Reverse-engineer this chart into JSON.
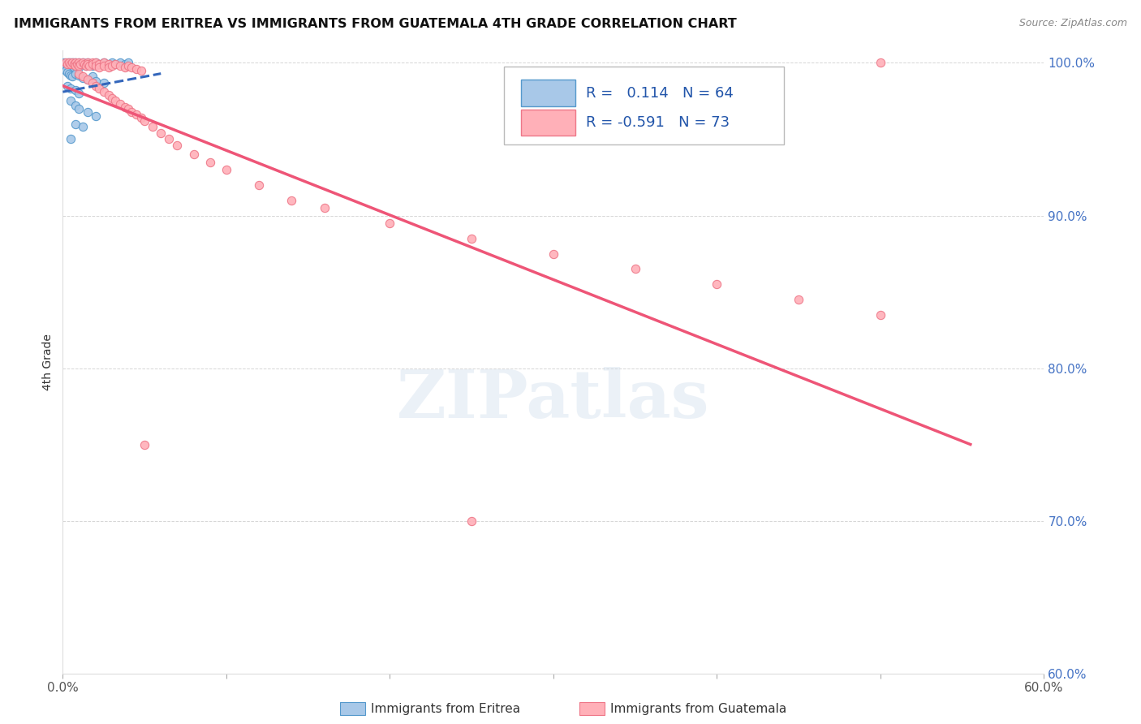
{
  "title": "IMMIGRANTS FROM ERITREA VS IMMIGRANTS FROM GUATEMALA 4TH GRADE CORRELATION CHART",
  "source": "Source: ZipAtlas.com",
  "ylabel": "4th Grade",
  "xmin": 0.0,
  "xmax": 0.6,
  "ymin": 0.6,
  "ymax": 1.008,
  "yticks": [
    0.6,
    0.7,
    0.8,
    0.9,
    1.0
  ],
  "ytick_labels": [
    "60.0%",
    "70.0%",
    "80.0%",
    "90.0%",
    "100.0%"
  ],
  "xticks": [
    0.0,
    0.1,
    0.2,
    0.3,
    0.4,
    0.5,
    0.6
  ],
  "xtick_labels": [
    "0.0%",
    "",
    "",
    "",
    "",
    "",
    "60.0%"
  ],
  "legend_eritrea_R": "0.114",
  "legend_eritrea_N": "64",
  "legend_guatemala_R": "-0.591",
  "legend_guatemala_N": "73",
  "eritrea_color": "#a8c8e8",
  "eritrea_edge_color": "#5599cc",
  "guatemala_color": "#ffb0b8",
  "guatemala_edge_color": "#ee7788",
  "eritrea_line_color": "#3366bb",
  "guatemala_line_color": "#ee5577",
  "watermark": "ZIPatlas",
  "eritrea_points": [
    [
      0.001,
      1.0
    ],
    [
      0.002,
      0.999
    ],
    [
      0.002,
      0.998
    ],
    [
      0.003,
      1.0
    ],
    [
      0.003,
      0.999
    ],
    [
      0.003,
      0.998
    ],
    [
      0.004,
      1.0
    ],
    [
      0.004,
      0.999
    ],
    [
      0.004,
      0.998
    ],
    [
      0.005,
      1.0
    ],
    [
      0.005,
      0.999
    ],
    [
      0.005,
      0.997
    ],
    [
      0.006,
      1.0
    ],
    [
      0.006,
      0.999
    ],
    [
      0.006,
      0.998
    ],
    [
      0.007,
      1.0
    ],
    [
      0.007,
      0.999
    ],
    [
      0.007,
      0.997
    ],
    [
      0.008,
      1.0
    ],
    [
      0.008,
      0.998
    ],
    [
      0.009,
      0.999
    ],
    [
      0.009,
      0.998
    ],
    [
      0.01,
      1.0
    ],
    [
      0.01,
      0.997
    ],
    [
      0.011,
      0.999
    ],
    [
      0.012,
      1.0
    ],
    [
      0.013,
      0.999
    ],
    [
      0.014,
      0.998
    ],
    [
      0.015,
      1.0
    ],
    [
      0.016,
      0.999
    ],
    [
      0.018,
      0.998
    ],
    [
      0.02,
      1.0
    ],
    [
      0.022,
      0.999
    ],
    [
      0.025,
      1.0
    ],
    [
      0.028,
      0.999
    ],
    [
      0.03,
      1.0
    ],
    [
      0.032,
      0.999
    ],
    [
      0.035,
      1.0
    ],
    [
      0.038,
      0.999
    ],
    [
      0.04,
      1.0
    ],
    [
      0.002,
      0.995
    ],
    [
      0.003,
      0.994
    ],
    [
      0.004,
      0.993
    ],
    [
      0.005,
      0.992
    ],
    [
      0.006,
      0.991
    ],
    [
      0.008,
      0.993
    ],
    [
      0.01,
      0.992
    ],
    [
      0.012,
      0.99
    ],
    [
      0.015,
      0.989
    ],
    [
      0.018,
      0.991
    ],
    [
      0.02,
      0.988
    ],
    [
      0.025,
      0.987
    ],
    [
      0.003,
      0.985
    ],
    [
      0.005,
      0.983
    ],
    [
      0.008,
      0.982
    ],
    [
      0.01,
      0.98
    ],
    [
      0.005,
      0.975
    ],
    [
      0.008,
      0.972
    ],
    [
      0.01,
      0.97
    ],
    [
      0.015,
      0.968
    ],
    [
      0.02,
      0.965
    ],
    [
      0.008,
      0.96
    ],
    [
      0.012,
      0.958
    ],
    [
      0.005,
      0.95
    ]
  ],
  "guatemala_points": [
    [
      0.002,
      1.0
    ],
    [
      0.003,
      0.999
    ],
    [
      0.004,
      1.0
    ],
    [
      0.005,
      0.999
    ],
    [
      0.006,
      1.0
    ],
    [
      0.007,
      0.999
    ],
    [
      0.008,
      1.0
    ],
    [
      0.008,
      0.998
    ],
    [
      0.009,
      0.999
    ],
    [
      0.01,
      1.0
    ],
    [
      0.01,
      0.998
    ],
    [
      0.011,
      0.999
    ],
    [
      0.012,
      1.0
    ],
    [
      0.013,
      0.999
    ],
    [
      0.014,
      0.998
    ],
    [
      0.015,
      1.0
    ],
    [
      0.015,
      0.999
    ],
    [
      0.016,
      0.998
    ],
    [
      0.018,
      1.0
    ],
    [
      0.018,
      0.999
    ],
    [
      0.02,
      1.0
    ],
    [
      0.02,
      0.998
    ],
    [
      0.022,
      0.999
    ],
    [
      0.022,
      0.997
    ],
    [
      0.025,
      1.0
    ],
    [
      0.025,
      0.998
    ],
    [
      0.028,
      0.999
    ],
    [
      0.028,
      0.997
    ],
    [
      0.03,
      0.998
    ],
    [
      0.032,
      0.999
    ],
    [
      0.035,
      0.998
    ],
    [
      0.038,
      0.997
    ],
    [
      0.04,
      0.998
    ],
    [
      0.042,
      0.997
    ],
    [
      0.045,
      0.996
    ],
    [
      0.048,
      0.995
    ],
    [
      0.01,
      0.993
    ],
    [
      0.012,
      0.991
    ],
    [
      0.015,
      0.989
    ],
    [
      0.018,
      0.987
    ],
    [
      0.02,
      0.985
    ],
    [
      0.022,
      0.983
    ],
    [
      0.025,
      0.981
    ],
    [
      0.028,
      0.979
    ],
    [
      0.03,
      0.977
    ],
    [
      0.032,
      0.975
    ],
    [
      0.035,
      0.973
    ],
    [
      0.038,
      0.971
    ],
    [
      0.04,
      0.97
    ],
    [
      0.042,
      0.968
    ],
    [
      0.045,
      0.966
    ],
    [
      0.048,
      0.964
    ],
    [
      0.05,
      0.962
    ],
    [
      0.055,
      0.958
    ],
    [
      0.06,
      0.954
    ],
    [
      0.065,
      0.95
    ],
    [
      0.07,
      0.946
    ],
    [
      0.08,
      0.94
    ],
    [
      0.09,
      0.935
    ],
    [
      0.1,
      0.93
    ],
    [
      0.12,
      0.92
    ],
    [
      0.14,
      0.91
    ],
    [
      0.16,
      0.905
    ],
    [
      0.2,
      0.895
    ],
    [
      0.25,
      0.885
    ],
    [
      0.3,
      0.875
    ],
    [
      0.35,
      0.865
    ],
    [
      0.4,
      0.855
    ],
    [
      0.05,
      0.75
    ],
    [
      0.45,
      0.845
    ],
    [
      0.5,
      0.835
    ],
    [
      0.25,
      0.7
    ],
    [
      0.5,
      1.0
    ]
  ],
  "eritrea_trend_x": [
    0.0,
    0.06
  ],
  "eritrea_trend_y": [
    0.981,
    0.993
  ],
  "guatemala_trend_x": [
    0.0,
    0.555
  ],
  "guatemala_trend_y": [
    0.985,
    0.75
  ]
}
